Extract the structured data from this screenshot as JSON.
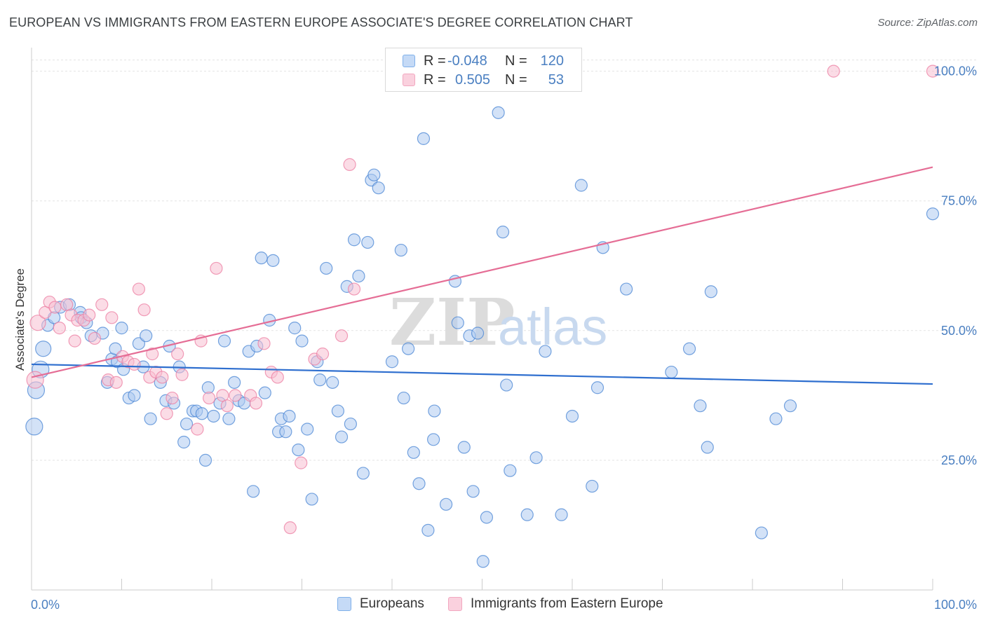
{
  "title": "EUROPEAN VS IMMIGRANTS FROM EASTERN EUROPE ASSOCIATE'S DEGREE CORRELATION CHART",
  "source": "Source: ZipAtlas.com",
  "watermark": {
    "zip": "ZIP",
    "atlas": "atlas"
  },
  "legend": {
    "rows": [
      {
        "r_label": "R =",
        "r_value": "-0.048",
        "n_label": "N =",
        "n_value": "120",
        "color": "#7fb0ea",
        "fill": "#c5daf6"
      },
      {
        "r_label": "R =",
        "r_value": "0.505",
        "n_label": "N =",
        "n_value": "53",
        "color": "#f2a7bf",
        "fill": "#fad1de"
      }
    ]
  },
  "bottom_legend": [
    {
      "label": "Europeans",
      "color": "#7fb0ea",
      "fill": "#c5daf6"
    },
    {
      "label": "Immigrants from Eastern Europe",
      "color": "#f2a7bf",
      "fill": "#fad1de"
    }
  ],
  "chart_data": {
    "type": "scatter",
    "title": "EUROPEAN VS IMMIGRANTS FROM EASTERN EUROPE ASSOCIATE'S DEGREE CORRELATION CHART",
    "xlabel": "",
    "ylabel": "Associate's Degree",
    "xlim": [
      0,
      100
    ],
    "ylim": [
      0,
      104
    ],
    "x_tick_labels": [
      "0.0%",
      "100.0%"
    ],
    "y_ticks": [
      25,
      50,
      75,
      100
    ],
    "y_tick_labels": [
      "25.0%",
      "50.0%",
      "75.0%",
      "100.0%"
    ],
    "grid": true,
    "series": [
      {
        "name": "Europeans",
        "color": "#4a86d4",
        "fill": "#aecbf0",
        "trend": {
          "x": [
            0,
            100
          ],
          "y": [
            43.5,
            39.7
          ],
          "color": "#2f6fcf"
        },
        "points": [
          [
            0.3,
            31.5
          ],
          [
            0.5,
            38.5
          ],
          [
            1.0,
            42.5
          ],
          [
            1.3,
            46.5
          ],
          [
            1.8,
            51.0
          ],
          [
            2.5,
            52.5
          ],
          [
            3.2,
            54.5
          ],
          [
            4.2,
            55.0
          ],
          [
            5.4,
            53.5
          ],
          [
            5.5,
            52.5
          ],
          [
            6.1,
            51.5
          ],
          [
            6.6,
            49.0
          ],
          [
            7.9,
            49.5
          ],
          [
            8.4,
            40.0
          ],
          [
            8.9,
            44.5
          ],
          [
            9.3,
            46.5
          ],
          [
            9.5,
            44.0
          ],
          [
            10.0,
            50.5
          ],
          [
            10.2,
            42.5
          ],
          [
            10.8,
            37.0
          ],
          [
            11.4,
            37.5
          ],
          [
            11.9,
            47.5
          ],
          [
            12.4,
            43.0
          ],
          [
            12.7,
            49.0
          ],
          [
            13.2,
            33.0
          ],
          [
            14.3,
            40.0
          ],
          [
            14.9,
            36.5
          ],
          [
            15.3,
            47.0
          ],
          [
            15.8,
            36.0
          ],
          [
            16.4,
            43.0
          ],
          [
            16.9,
            28.5
          ],
          [
            17.2,
            32.0
          ],
          [
            17.9,
            34.5
          ],
          [
            18.3,
            34.5
          ],
          [
            18.9,
            34.0
          ],
          [
            19.3,
            25.0
          ],
          [
            19.6,
            39.0
          ],
          [
            20.2,
            33.5
          ],
          [
            20.9,
            36.0
          ],
          [
            21.4,
            48.0
          ],
          [
            21.9,
            33.0
          ],
          [
            22.5,
            40.0
          ],
          [
            23.0,
            36.5
          ],
          [
            23.6,
            36.0
          ],
          [
            24.1,
            46.0
          ],
          [
            24.6,
            19.0
          ],
          [
            25.0,
            47.0
          ],
          [
            25.5,
            64.0
          ],
          [
            25.9,
            38.0
          ],
          [
            26.4,
            52.0
          ],
          [
            26.8,
            63.5
          ],
          [
            27.4,
            30.5
          ],
          [
            27.7,
            33.0
          ],
          [
            28.2,
            30.5
          ],
          [
            28.6,
            33.5
          ],
          [
            29.2,
            50.5
          ],
          [
            29.6,
            27.0
          ],
          [
            30.0,
            48.0
          ],
          [
            30.6,
            31.0
          ],
          [
            31.1,
            17.5
          ],
          [
            31.7,
            44.0
          ],
          [
            32.0,
            40.5
          ],
          [
            32.7,
            62.0
          ],
          [
            33.4,
            40.0
          ],
          [
            34.0,
            34.5
          ],
          [
            34.4,
            29.5
          ],
          [
            35.0,
            58.5
          ],
          [
            35.4,
            32.0
          ],
          [
            35.8,
            67.5
          ],
          [
            36.3,
            60.5
          ],
          [
            36.8,
            22.5
          ],
          [
            37.3,
            67.0
          ],
          [
            37.7,
            79.0
          ],
          [
            38.0,
            80.0
          ],
          [
            38.5,
            77.5
          ],
          [
            40.0,
            44.0
          ],
          [
            41.0,
            65.5
          ],
          [
            41.3,
            37.0
          ],
          [
            41.8,
            46.5
          ],
          [
            42.4,
            26.5
          ],
          [
            43.0,
            20.5
          ],
          [
            43.5,
            87.0
          ],
          [
            44.0,
            11.5
          ],
          [
            44.6,
            29.0
          ],
          [
            44.7,
            34.5
          ],
          [
            46.0,
            16.5
          ],
          [
            47.0,
            59.5
          ],
          [
            47.3,
            51.5
          ],
          [
            48.0,
            27.5
          ],
          [
            48.6,
            49.0
          ],
          [
            49.0,
            19.0
          ],
          [
            49.5,
            49.5
          ],
          [
            50.1,
            5.5
          ],
          [
            50.5,
            14.0
          ],
          [
            51.8,
            92.0
          ],
          [
            52.3,
            69.0
          ],
          [
            52.7,
            39.5
          ],
          [
            53.1,
            23.0
          ],
          [
            55.0,
            14.5
          ],
          [
            56.0,
            25.5
          ],
          [
            57.0,
            46.0
          ],
          [
            58.8,
            14.5
          ],
          [
            60.0,
            33.5
          ],
          [
            61.0,
            78.0
          ],
          [
            62.2,
            20.0
          ],
          [
            62.8,
            39.0
          ],
          [
            63.4,
            66.0
          ],
          [
            66.0,
            58.0
          ],
          [
            71.0,
            42.0
          ],
          [
            73.0,
            46.5
          ],
          [
            74.2,
            35.5
          ],
          [
            75.0,
            27.5
          ],
          [
            75.4,
            57.5
          ],
          [
            81.0,
            11.0
          ],
          [
            82.6,
            33.0
          ],
          [
            84.2,
            35.5
          ],
          [
            100.0,
            72.5
          ]
        ]
      },
      {
        "name": "Immigrants from Eastern Europe",
        "color": "#ec7ea2",
        "fill": "#f7bfd1",
        "trend": {
          "x": [
            0,
            100
          ],
          "y": [
            41.0,
            81.5
          ],
          "color": "#e56d95"
        },
        "points": [
          [
            0.4,
            40.5
          ],
          [
            0.7,
            51.5
          ],
          [
            1.5,
            53.5
          ],
          [
            2.0,
            55.5
          ],
          [
            2.6,
            54.5
          ],
          [
            3.1,
            50.5
          ],
          [
            3.9,
            55.0
          ],
          [
            4.4,
            53.0
          ],
          [
            4.8,
            48.0
          ],
          [
            5.1,
            52.0
          ],
          [
            5.8,
            52.0
          ],
          [
            6.4,
            53.0
          ],
          [
            7.0,
            48.5
          ],
          [
            7.8,
            55.0
          ],
          [
            8.5,
            40.5
          ],
          [
            8.9,
            52.5
          ],
          [
            9.4,
            40.0
          ],
          [
            10.1,
            45.0
          ],
          [
            10.7,
            44.0
          ],
          [
            11.4,
            43.5
          ],
          [
            11.9,
            58.0
          ],
          [
            12.5,
            54.0
          ],
          [
            13.1,
            41.0
          ],
          [
            13.4,
            45.5
          ],
          [
            13.8,
            42.0
          ],
          [
            14.5,
            41.0
          ],
          [
            15.0,
            34.0
          ],
          [
            15.6,
            37.0
          ],
          [
            16.2,
            45.5
          ],
          [
            16.7,
            41.5
          ],
          [
            18.4,
            31.0
          ],
          [
            18.8,
            48.0
          ],
          [
            19.7,
            37.0
          ],
          [
            20.5,
            62.0
          ],
          [
            21.2,
            37.5
          ],
          [
            21.7,
            35.5
          ],
          [
            22.6,
            37.5
          ],
          [
            24.3,
            37.5
          ],
          [
            24.9,
            36.0
          ],
          [
            25.8,
            47.5
          ],
          [
            26.6,
            42.0
          ],
          [
            27.3,
            41.0
          ],
          [
            28.7,
            12.0
          ],
          [
            29.9,
            24.5
          ],
          [
            31.4,
            44.5
          ],
          [
            32.3,
            45.5
          ],
          [
            34.4,
            49.0
          ],
          [
            35.3,
            82.0
          ],
          [
            35.8,
            58.0
          ],
          [
            89.0,
            100.0
          ],
          [
            100.0,
            100.0
          ]
        ]
      }
    ]
  }
}
